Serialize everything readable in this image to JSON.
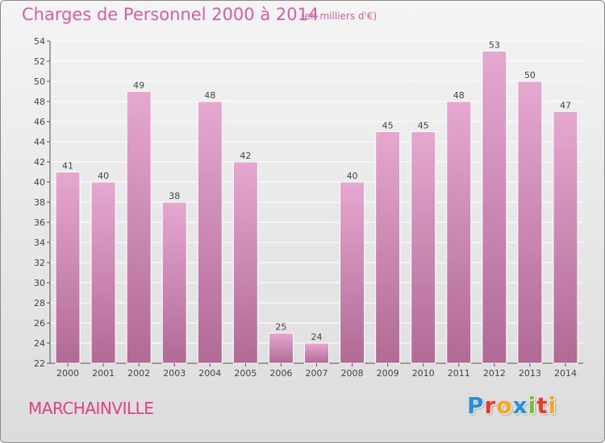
{
  "title": "Charges de Personnel 2000 à 2014",
  "subtitle": "(en milliers d'€)",
  "place_name": "MARCHAINVILLE",
  "logo": {
    "text": "Proxiti",
    "colors": [
      "#2a8fd6",
      "#e8392e",
      "#f5a623",
      "#2a8fd6",
      "#7bbf2b",
      "#e8392e",
      "#f5a623"
    ]
  },
  "colors": {
    "bar_top": "#e6a8d0",
    "bar_bottom": "#b06a95",
    "bar_edge": "#ffffff",
    "axis": "#555555",
    "grid": "#ffffff"
  },
  "chart_data": {
    "type": "bar",
    "categories": [
      "2000",
      "2001",
      "2002",
      "2003",
      "2004",
      "2005",
      "2006",
      "2007",
      "2008",
      "2009",
      "2010",
      "2011",
      "2012",
      "2013",
      "2014"
    ],
    "values": [
      41,
      40,
      49,
      38,
      48,
      42,
      25,
      24,
      40,
      45,
      45,
      48,
      53,
      50,
      47
    ],
    "ylim": [
      22,
      54
    ],
    "yticks": [
      22,
      24,
      26,
      28,
      30,
      32,
      34,
      36,
      38,
      40,
      42,
      44,
      46,
      48,
      50,
      52,
      54
    ],
    "grid": true,
    "xlabel": "",
    "ylabel": ""
  }
}
